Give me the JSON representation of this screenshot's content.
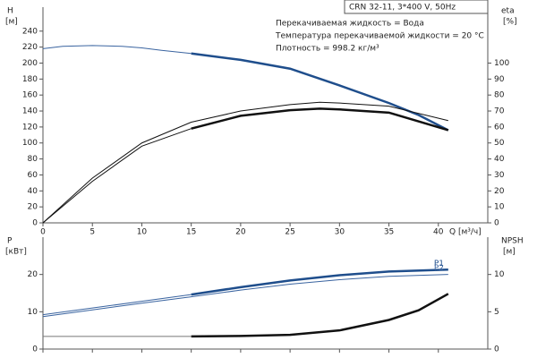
{
  "chart_data": [
    {
      "type": "line",
      "box_title": "CRN 32-11, 3*400 V, 50Hz",
      "annotations": [
        "Перекачиваемая жидкость = Вода",
        "Температура перекачиваемой жидкости = 20 °C",
        "Плотность = 998.2 кг/м³"
      ],
      "ylabel": "H",
      "yunit": "[м]",
      "y2label": "eta",
      "y2unit": "[%]",
      "xlabel": "Q [м³/ч]",
      "xlim": [
        0,
        45
      ],
      "xticks": [
        0,
        5,
        10,
        15,
        20,
        25,
        30,
        35,
        40
      ],
      "xtick_labels": true,
      "ylim": [
        0,
        270
      ],
      "yticks": [
        0,
        20,
        40,
        60,
        80,
        100,
        120,
        140,
        160,
        180,
        200,
        220,
        240
      ],
      "y2lim": [
        0,
        135
      ],
      "y2ticks": [
        0,
        10,
        20,
        30,
        40,
        50,
        60,
        70,
        80,
        90,
        100
      ],
      "series": [
        {
          "color": "#3a64a0",
          "width": 1,
          "x": [
            0,
            2,
            5,
            8,
            10,
            12,
            15
          ],
          "values": [
            218,
            221,
            222,
            221,
            219,
            216,
            212
          ]
        },
        {
          "color": "#1f4e8c",
          "width": 2.5,
          "x": [
            15,
            20,
            25,
            30,
            35,
            38,
            41
          ],
          "values": [
            212,
            204,
            193,
            172,
            150,
            135,
            116
          ]
        },
        {
          "color": "#111111",
          "width": 1,
          "axis": "y2",
          "x": [
            0,
            5,
            10,
            15,
            20,
            25,
            28,
            30,
            35,
            41
          ],
          "values": [
            0,
            28,
            50,
            63,
            70,
            74,
            75.5,
            75,
            73,
            64
          ]
        },
        {
          "color": "#111111",
          "width": 1,
          "axis": "y2",
          "x": [
            0,
            5,
            10,
            15
          ],
          "values": [
            0,
            26,
            48,
            59
          ]
        },
        {
          "color": "#111111",
          "width": 2.5,
          "axis": "y2",
          "x": [
            15,
            20,
            25,
            28,
            30,
            35,
            41
          ],
          "values": [
            59,
            67,
            70.5,
            71.5,
            71,
            69,
            58
          ]
        }
      ]
    },
    {
      "type": "line",
      "ylabel": "P",
      "yunit": "[кВт]",
      "y2label": "NPSH",
      "y2unit": "[м]",
      "xlim": [
        0,
        45
      ],
      "xticks": [
        0,
        5,
        10,
        15,
        20,
        25,
        30,
        35,
        40
      ],
      "xtick_labels": false,
      "ylim": [
        0,
        30
      ],
      "yticks": [
        0,
        10,
        20
      ],
      "y2lim": [
        0,
        15
      ],
      "y2ticks": [
        0,
        5,
        10
      ],
      "series": [
        {
          "color": "#3a64a0",
          "width": 1,
          "x": [
            0,
            5,
            10,
            15
          ],
          "values": [
            9.2,
            11,
            12.8,
            14.6
          ]
        },
        {
          "name": "P1",
          "color": "#1f4e8c",
          "width": 2.5,
          "x": [
            15,
            20,
            25,
            30,
            35,
            41
          ],
          "values": [
            14.6,
            16.6,
            18.4,
            19.8,
            20.8,
            21.3
          ]
        },
        {
          "name": "P2",
          "color": "#3a64a0",
          "width": 1,
          "x": [
            0,
            5,
            10,
            15,
            20,
            25,
            30,
            35,
            41
          ],
          "values": [
            8.7,
            10.5,
            12.3,
            14,
            15.8,
            17.4,
            18.6,
            19.5,
            20
          ]
        },
        {
          "color": "#777777",
          "width": 1,
          "axis": "y2",
          "x": [
            0,
            15
          ],
          "values": [
            1.7,
            1.7
          ]
        },
        {
          "color": "#111111",
          "width": 2.5,
          "axis": "y2",
          "x": [
            15,
            20,
            25,
            30,
            35,
            38,
            41
          ],
          "values": [
            1.7,
            1.75,
            1.9,
            2.5,
            3.9,
            5.2,
            7.4
          ]
        }
      ]
    }
  ]
}
